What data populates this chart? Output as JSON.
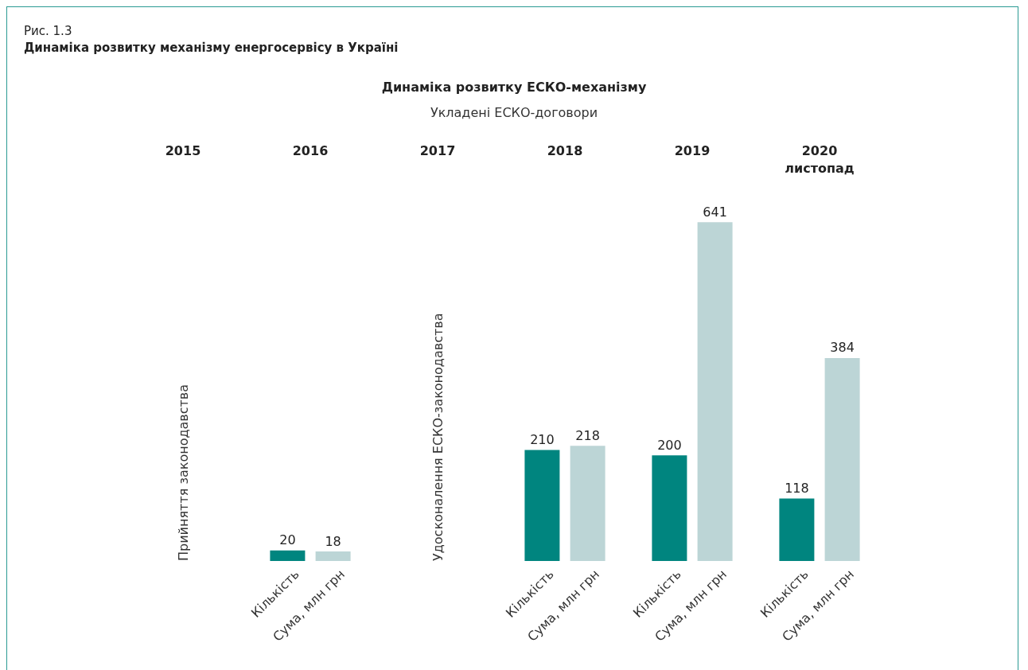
{
  "chart_data": {
    "type": "bar",
    "title": "Динаміка розвитку ЕСКО-механізму",
    "subtitle": "Укладені ЕСКО-договори",
    "categories": [
      "2015",
      "2016",
      "2017",
      "2018",
      "2019",
      "2020\nлистопад"
    ],
    "series": [
      {
        "name": "Кількість",
        "color": "#00857f",
        "values": [
          null,
          20,
          null,
          210,
          200,
          118
        ]
      },
      {
        "name": "Сума, млн грн",
        "color": "#bcd5d6",
        "values": [
          null,
          18,
          null,
          218,
          641,
          384
        ]
      }
    ],
    "data_labels": true,
    "annotations": [
      "Рис. 1.3",
      "Динаміка розвитку механізму енергосервісу в Україні",
      "Прийняття законодавства",
      "Удосконалення ЕСКО-законодавства"
    ]
  }
}
